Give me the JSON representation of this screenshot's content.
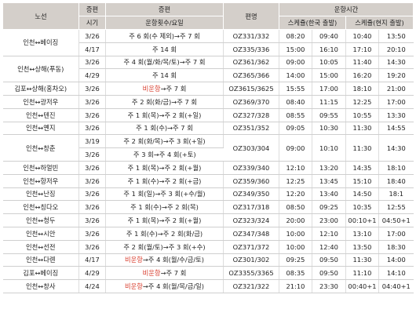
{
  "headers": {
    "route": "노선",
    "period_top": "증편",
    "period_sub": "시기",
    "info_top": "증편",
    "info_sub": "운항횟수/요일",
    "flight": "편명",
    "schedule": "운항시간",
    "sched_kr": "스케쥴(한국 출발)",
    "sched_local": "스케쥴(현지 출발)"
  },
  "groups": [
    {
      "route": "인천↔베이징",
      "rows": [
        {
          "period": "3/26",
          "info_red": "",
          "info": "주 6 회(수 제외)→주 7 회",
          "flight": "OZ331/332",
          "t1": "08:20",
          "t2": "09:40",
          "t3": "10:40",
          "t4": "13:50"
        },
        {
          "period": "4/17",
          "info_red": "",
          "info": "주 14 회",
          "flight": "OZ335/336",
          "t1": "15:00",
          "t2": "16:10",
          "t3": "17:10",
          "t4": "20:10"
        }
      ]
    },
    {
      "route": "인천↔상해(푸동)",
      "rows": [
        {
          "period": "3/26",
          "info_red": "",
          "info": "주 4 회(월/화/목/토)→주 7 회",
          "flight": "OZ361/362",
          "t1": "09:00",
          "t2": "10:05",
          "t3": "11:40",
          "t4": "14:30"
        },
        {
          "period": "4/29",
          "info_red": "",
          "info": "주 14 회",
          "flight": "OZ365/366",
          "t1": "14:00",
          "t2": "15:00",
          "t3": "16:20",
          "t4": "19:20"
        }
      ]
    },
    {
      "route": "김포↔상해(홍차오)",
      "rows": [
        {
          "period": "3/26",
          "info_red": "비운항",
          "info": "→주 7 회",
          "flight": "OZ3615/3625",
          "t1": "15:55",
          "t2": "17:00",
          "t3": "18:10",
          "t4": "21:00"
        }
      ]
    },
    {
      "route": "인천↔광저우",
      "rows": [
        {
          "period": "3/26",
          "info_red": "",
          "info": "주 2 회(화/금)→주 7 회",
          "flight": "OZ369/370",
          "t1": "08:40",
          "t2": "11:15",
          "t3": "12:25",
          "t4": "17:00"
        }
      ]
    },
    {
      "route": "인천↔텐진",
      "rows": [
        {
          "period": "3/26",
          "info_red": "",
          "info": "주 1 회(목)→주 2 회(+일)",
          "flight": "OZ327/328",
          "t1": "08:55",
          "t2": "09:55",
          "t3": "10:55",
          "t4": "13:30"
        }
      ]
    },
    {
      "route": "인천↔옌지",
      "rows": [
        {
          "period": "3/26",
          "info_red": "",
          "info": "주 1 회(수)→주 7 회",
          "flight": "OZ351/352",
          "t1": "09:05",
          "t2": "10:30",
          "t3": "11:30",
          "t4": "14:55"
        }
      ]
    },
    {
      "route": "인천↔창춘",
      "rows": [
        {
          "period": "3/19",
          "info_red": "",
          "info": "주 2 회(화/목)→주 3 회(+일)",
          "flight": "OZ303/304",
          "t1": "09:00",
          "t2": "10:10",
          "t3": "11:30",
          "t4": "14:30"
        },
        {
          "period": "3/26",
          "info_red": "",
          "info": "주 3 회→주 4 회(+토)",
          "flight": "",
          "t1": "",
          "t2": "",
          "t3": "",
          "t4": ""
        }
      ]
    },
    {
      "route": "인천↔하얼빈",
      "rows": [
        {
          "period": "3/26",
          "info_red": "",
          "info": "주 1 회(목)→주 2 회(+월)",
          "flight": "OZ339/340",
          "t1": "12:10",
          "t2": "13:20",
          "t3": "14:35",
          "t4": "18:10"
        }
      ]
    },
    {
      "route": "인천↔항저우",
      "rows": [
        {
          "period": "3/26",
          "info_red": "",
          "info": "주 1 회(수)→주 2 회(+금)",
          "flight": "OZ359/360",
          "t1": "12:25",
          "t2": "13:45",
          "t3": "15:10",
          "t4": "18:40"
        }
      ]
    },
    {
      "route": "인천↔난징",
      "rows": [
        {
          "period": "3/26",
          "info_red": "",
          "info": "주 1 회(일)→주 3 회(+수/월)",
          "flight": "OZ349/350",
          "t1": "12:20",
          "t2": "13:40",
          "t3": "14:50",
          "t4": "18:1"
        }
      ]
    },
    {
      "route": "인천↔칭다오",
      "rows": [
        {
          "period": "3/26",
          "info_red": "",
          "info": "주 1 회(수)→주 2 회(목)",
          "flight": "OZ317/318",
          "t1": "08:50",
          "t2": "09:25",
          "t3": "10:35",
          "t4": "12:55"
        }
      ]
    },
    {
      "route": "인천↔청두",
      "rows": [
        {
          "period": "3/26",
          "info_red": "",
          "info": "주 1 회(목)→주 2 회(+월)",
          "flight": "OZ323/324",
          "t1": "20:00",
          "t2": "23:00",
          "t3": "00:10+1",
          "t4": "04:50+1"
        }
      ]
    },
    {
      "route": "인천↔시안",
      "rows": [
        {
          "period": "3/26",
          "info_red": "",
          "info": "주 1 회(수)→주 2 회(화/금)",
          "flight": "OZ347/348",
          "t1": "10:00",
          "t2": "12:10",
          "t3": "13:10",
          "t4": "17:00"
        }
      ]
    },
    {
      "route": "인천↔선전",
      "rows": [
        {
          "period": "3/26",
          "info_red": "",
          "info": "주 2 회(월/토)→주 3 회(+수)",
          "flight": "OZ371/372",
          "t1": "10:00",
          "t2": "12:40",
          "t3": "13:50",
          "t4": "18:30"
        }
      ]
    },
    {
      "route": "인천↔다롄",
      "rows": [
        {
          "period": "4/17",
          "info_red": "비운항",
          "info": "→주 4 회(월/수/금/토)",
          "flight": "OZ301/302",
          "t1": "09:25",
          "t2": "09:50",
          "t3": "11:30",
          "t4": "14:00"
        }
      ]
    },
    {
      "route": "김포↔베이징",
      "rows": [
        {
          "period": "4/29",
          "info_red": "비운항",
          "info": "→주 7 회",
          "flight": "OZ3355/3365",
          "t1": "08:35",
          "t2": "09:50",
          "t3": "11:10",
          "t4": "14:10"
        }
      ]
    },
    {
      "route": "인천↔창사",
      "rows": [
        {
          "period": "4/24",
          "info_red": "비운항",
          "info": "→주 4 회(월/목/금/일)",
          "flight": "OZ321/322",
          "t1": "21:10",
          "t2": "23:30",
          "t3": "00:40+1",
          "t4": "04:40+1"
        }
      ]
    }
  ]
}
